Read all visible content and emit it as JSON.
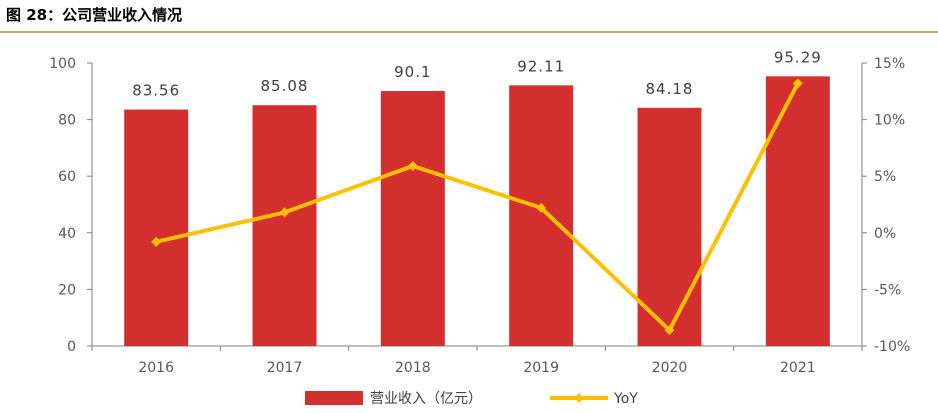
{
  "figure_title": "图 28：公司营业收入情况",
  "colors": {
    "bar": "#D32F2F",
    "line": "#FFC000",
    "rule": "#C9A97A",
    "axis": "#7F7F7F"
  },
  "chart_data": {
    "type": "bar",
    "categories": [
      "2016",
      "2017",
      "2018",
      "2019",
      "2020",
      "2021"
    ],
    "series": [
      {
        "name": "营业收入（亿元）",
        "type": "bar",
        "axis": "left",
        "values": [
          83.56,
          85.08,
          90.1,
          92.11,
          84.18,
          95.29
        ],
        "labels": [
          "83.56",
          "85.08",
          "90.1",
          "92.11",
          "84.18",
          "95.29"
        ]
      },
      {
        "name": "YoY",
        "type": "line",
        "axis": "right",
        "values": [
          -0.8,
          1.8,
          5.9,
          2.2,
          -8.6,
          13.2
        ]
      }
    ],
    "ylim_left": [
      0,
      100
    ],
    "yticks_left": [
      "0",
      "20",
      "40",
      "60",
      "80",
      "100"
    ],
    "ylim_right": [
      -10,
      15
    ],
    "yticks_right": [
      "-10%",
      "-5%",
      "0%",
      "5%",
      "10%",
      "15%"
    ],
    "legend_position": "bottom",
    "grid": false
  }
}
